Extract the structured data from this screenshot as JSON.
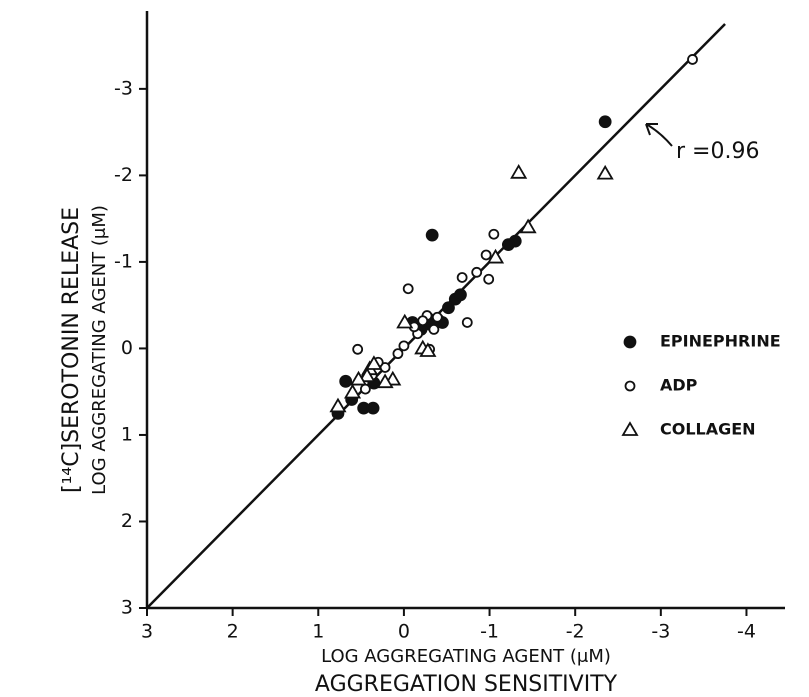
{
  "chart_data": {
    "type": "scatter",
    "ylabel": "[¹⁴C]SEROTONIN RELEASE",
    "ylabel2": "LOG AGGREGATING AGENT (μM)",
    "xlabel": "LOG AGGREGATING AGENT (μM)",
    "xlabel2": "AGGREGATION SENSITIVITY",
    "annotation": "r =0.96",
    "xlim": [
      3,
      -4.45
    ],
    "ylim": [
      3,
      -3.9
    ],
    "xticks": [
      3,
      2,
      1,
      0,
      -1,
      -2,
      -3,
      -4
    ],
    "yticks": [
      3,
      2,
      1,
      0,
      -1,
      -2,
      -3
    ],
    "fit": {
      "x": [
        3,
        -3.75
      ],
      "y": [
        3,
        -3.75
      ]
    },
    "legend": "right",
    "series": [
      {
        "name": "EPINEPHRINE",
        "marker": "filled-circle",
        "color": "#111",
        "x": [
          -2.35,
          -0.33,
          -1.3,
          -1.22,
          -0.6,
          -0.66,
          -0.52,
          -0.4,
          -0.3,
          -0.2,
          -0.1,
          -0.28,
          -0.45,
          0.68,
          0.47,
          0.36,
          0.61,
          0.77,
          0.42,
          0.35
        ],
        "y": [
          -2.62,
          -1.31,
          -1.24,
          -1.2,
          -0.57,
          -0.62,
          -0.47,
          -0.33,
          -0.28,
          -0.22,
          -0.3,
          -0.35,
          -0.3,
          0.38,
          0.69,
          0.69,
          0.59,
          0.75,
          0.32,
          0.4
        ]
      },
      {
        "name": "ADP",
        "marker": "open-circle",
        "color": "#111",
        "x": [
          -3.37,
          -1.05,
          -0.96,
          -0.99,
          -0.85,
          -0.68,
          -0.74,
          -0.05,
          0.54,
          0.22,
          0.07,
          0,
          -0.16,
          -0.3,
          -0.27,
          -0.39,
          -0.35,
          0.37,
          0.3,
          0.45,
          -0.12,
          -0.22
        ],
        "y": [
          -3.34,
          -1.32,
          -1.08,
          -0.8,
          -0.88,
          -0.82,
          -0.3,
          -0.69,
          0.01,
          0.22,
          0.06,
          -0.03,
          -0.17,
          0.01,
          -0.38,
          -0.36,
          -0.22,
          0.31,
          0.16,
          0.47,
          -0.25,
          -0.32
        ]
      },
      {
        "name": "COLLAGEN",
        "marker": "triangle",
        "color": "#111",
        "x": [
          -1.34,
          -2.35,
          -1.45,
          -1.07,
          -0.01,
          -0.22,
          -0.28,
          0.13,
          0.22,
          0.4,
          0.43,
          0.53,
          0.77,
          0.6,
          0.35
        ],
        "y": [
          -2.03,
          -2.02,
          -1.4,
          -1.05,
          -0.3,
          0,
          0.03,
          0.36,
          0.39,
          0.24,
          0.32,
          0.36,
          0.67,
          0.51,
          0.18
        ]
      }
    ]
  }
}
